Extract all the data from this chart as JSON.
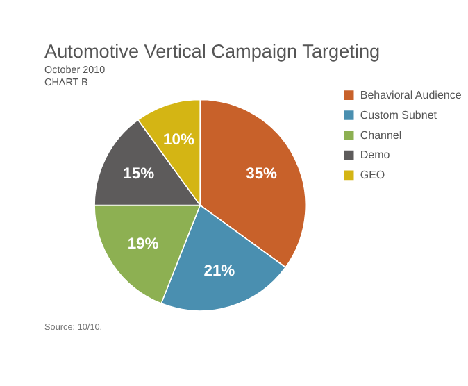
{
  "chart_data": {
    "type": "pie",
    "title": "Automotive Vertical Campaign Targeting",
    "subtitle": "October 2010\nCHART B",
    "categories": [
      "Behavioral Audience",
      "Custom Subnet",
      "Channel",
      "Demo",
      "GEO"
    ],
    "values": [
      35,
      21,
      19,
      15,
      10
    ],
    "colors": [
      "#c8612a",
      "#4a8fb0",
      "#8db052",
      "#5d5b5b",
      "#d4b514"
    ],
    "value_labels": [
      "35%",
      "21%",
      "19%",
      "15%",
      "10%"
    ],
    "legend": "right",
    "annotations": [
      "Source: 10/10."
    ]
  }
}
